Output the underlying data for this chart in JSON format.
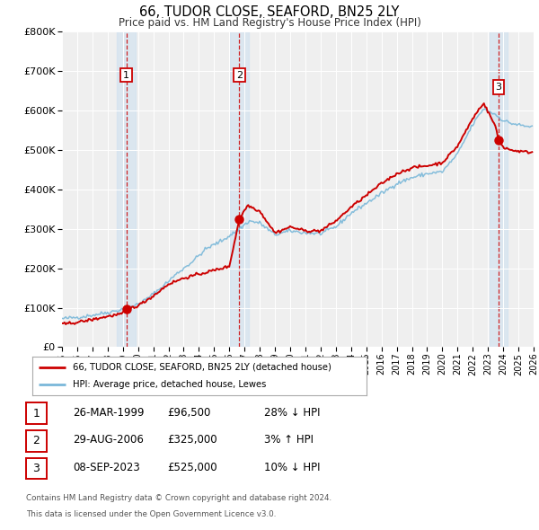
{
  "title": "66, TUDOR CLOSE, SEAFORD, BN25 2LY",
  "subtitle": "Price paid vs. HM Land Registry's House Price Index (HPI)",
  "legend_line1": "66, TUDOR CLOSE, SEAFORD, BN25 2LY (detached house)",
  "legend_line2": "HPI: Average price, detached house, Lewes",
  "sale1_date": "26-MAR-1999",
  "sale1_price": "£96,500",
  "sale1_hpi": "28% ↓ HPI",
  "sale2_date": "29-AUG-2006",
  "sale2_price": "£325,000",
  "sale2_hpi": "3% ↑ HPI",
  "sale3_date": "08-SEP-2023",
  "sale3_price": "£525,000",
  "sale3_hpi": "10% ↓ HPI",
  "footer1": "Contains HM Land Registry data © Crown copyright and database right 2024.",
  "footer2": "This data is licensed under the Open Government Licence v3.0.",
  "hpi_color": "#7ab8d9",
  "price_color": "#cc0000",
  "sale_dot_color": "#cc0000",
  "background_color": "#ffffff",
  "plot_bg_color": "#efefef",
  "grid_color": "#ffffff",
  "sale1_year": 1999.23,
  "sale2_year": 2006.66,
  "sale3_year": 2023.69,
  "sale1_value": 96500,
  "sale2_value": 325000,
  "sale3_value": 525000,
  "ylim_max": 800000,
  "xmin": 1995,
  "xmax": 2026,
  "yticks": [
    0,
    100000,
    200000,
    300000,
    400000,
    500000,
    600000,
    700000,
    800000
  ]
}
